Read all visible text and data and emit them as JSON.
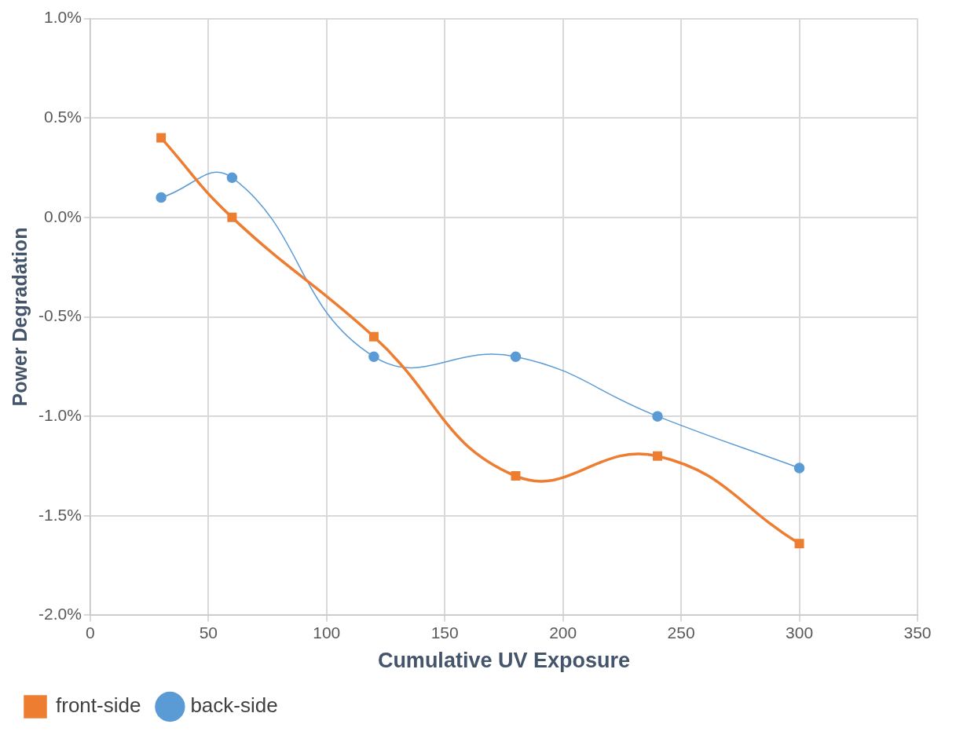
{
  "chart_data": {
    "type": "line",
    "xlabel": "Cumulative UV Exposure",
    "ylabel": "Power Degradation",
    "x": [
      30,
      60,
      120,
      180,
      240,
      300
    ],
    "series": [
      {
        "name": "front-side",
        "color": "#ed7d31",
        "marker": "square",
        "values": [
          0.4,
          0.0,
          -0.6,
          -1.3,
          -1.2,
          -1.64
        ]
      },
      {
        "name": "back-side",
        "color": "#5b9bd5",
        "marker": "circle",
        "values": [
          0.1,
          0.2,
          -0.7,
          -0.7,
          -1.0,
          -1.26
        ]
      }
    ],
    "xlim": [
      0,
      350
    ],
    "xticks": [
      0,
      50,
      100,
      150,
      200,
      250,
      300,
      350
    ],
    "ylim": [
      -2,
      1
    ],
    "yticks": [
      {
        "value": -2,
        "label": "-2.0%"
      },
      {
        "value": -1.5,
        "label": "-1.5%"
      },
      {
        "value": -1,
        "label": "-1.0%"
      },
      {
        "value": -0.5,
        "label": "-0.5%"
      },
      {
        "value": 0,
        "label": "0.0%"
      },
      {
        "value": 0.5,
        "label": "0.5%"
      },
      {
        "value": 1,
        "label": "1.0%"
      }
    ],
    "grid": true,
    "legend": "bottom left"
  }
}
